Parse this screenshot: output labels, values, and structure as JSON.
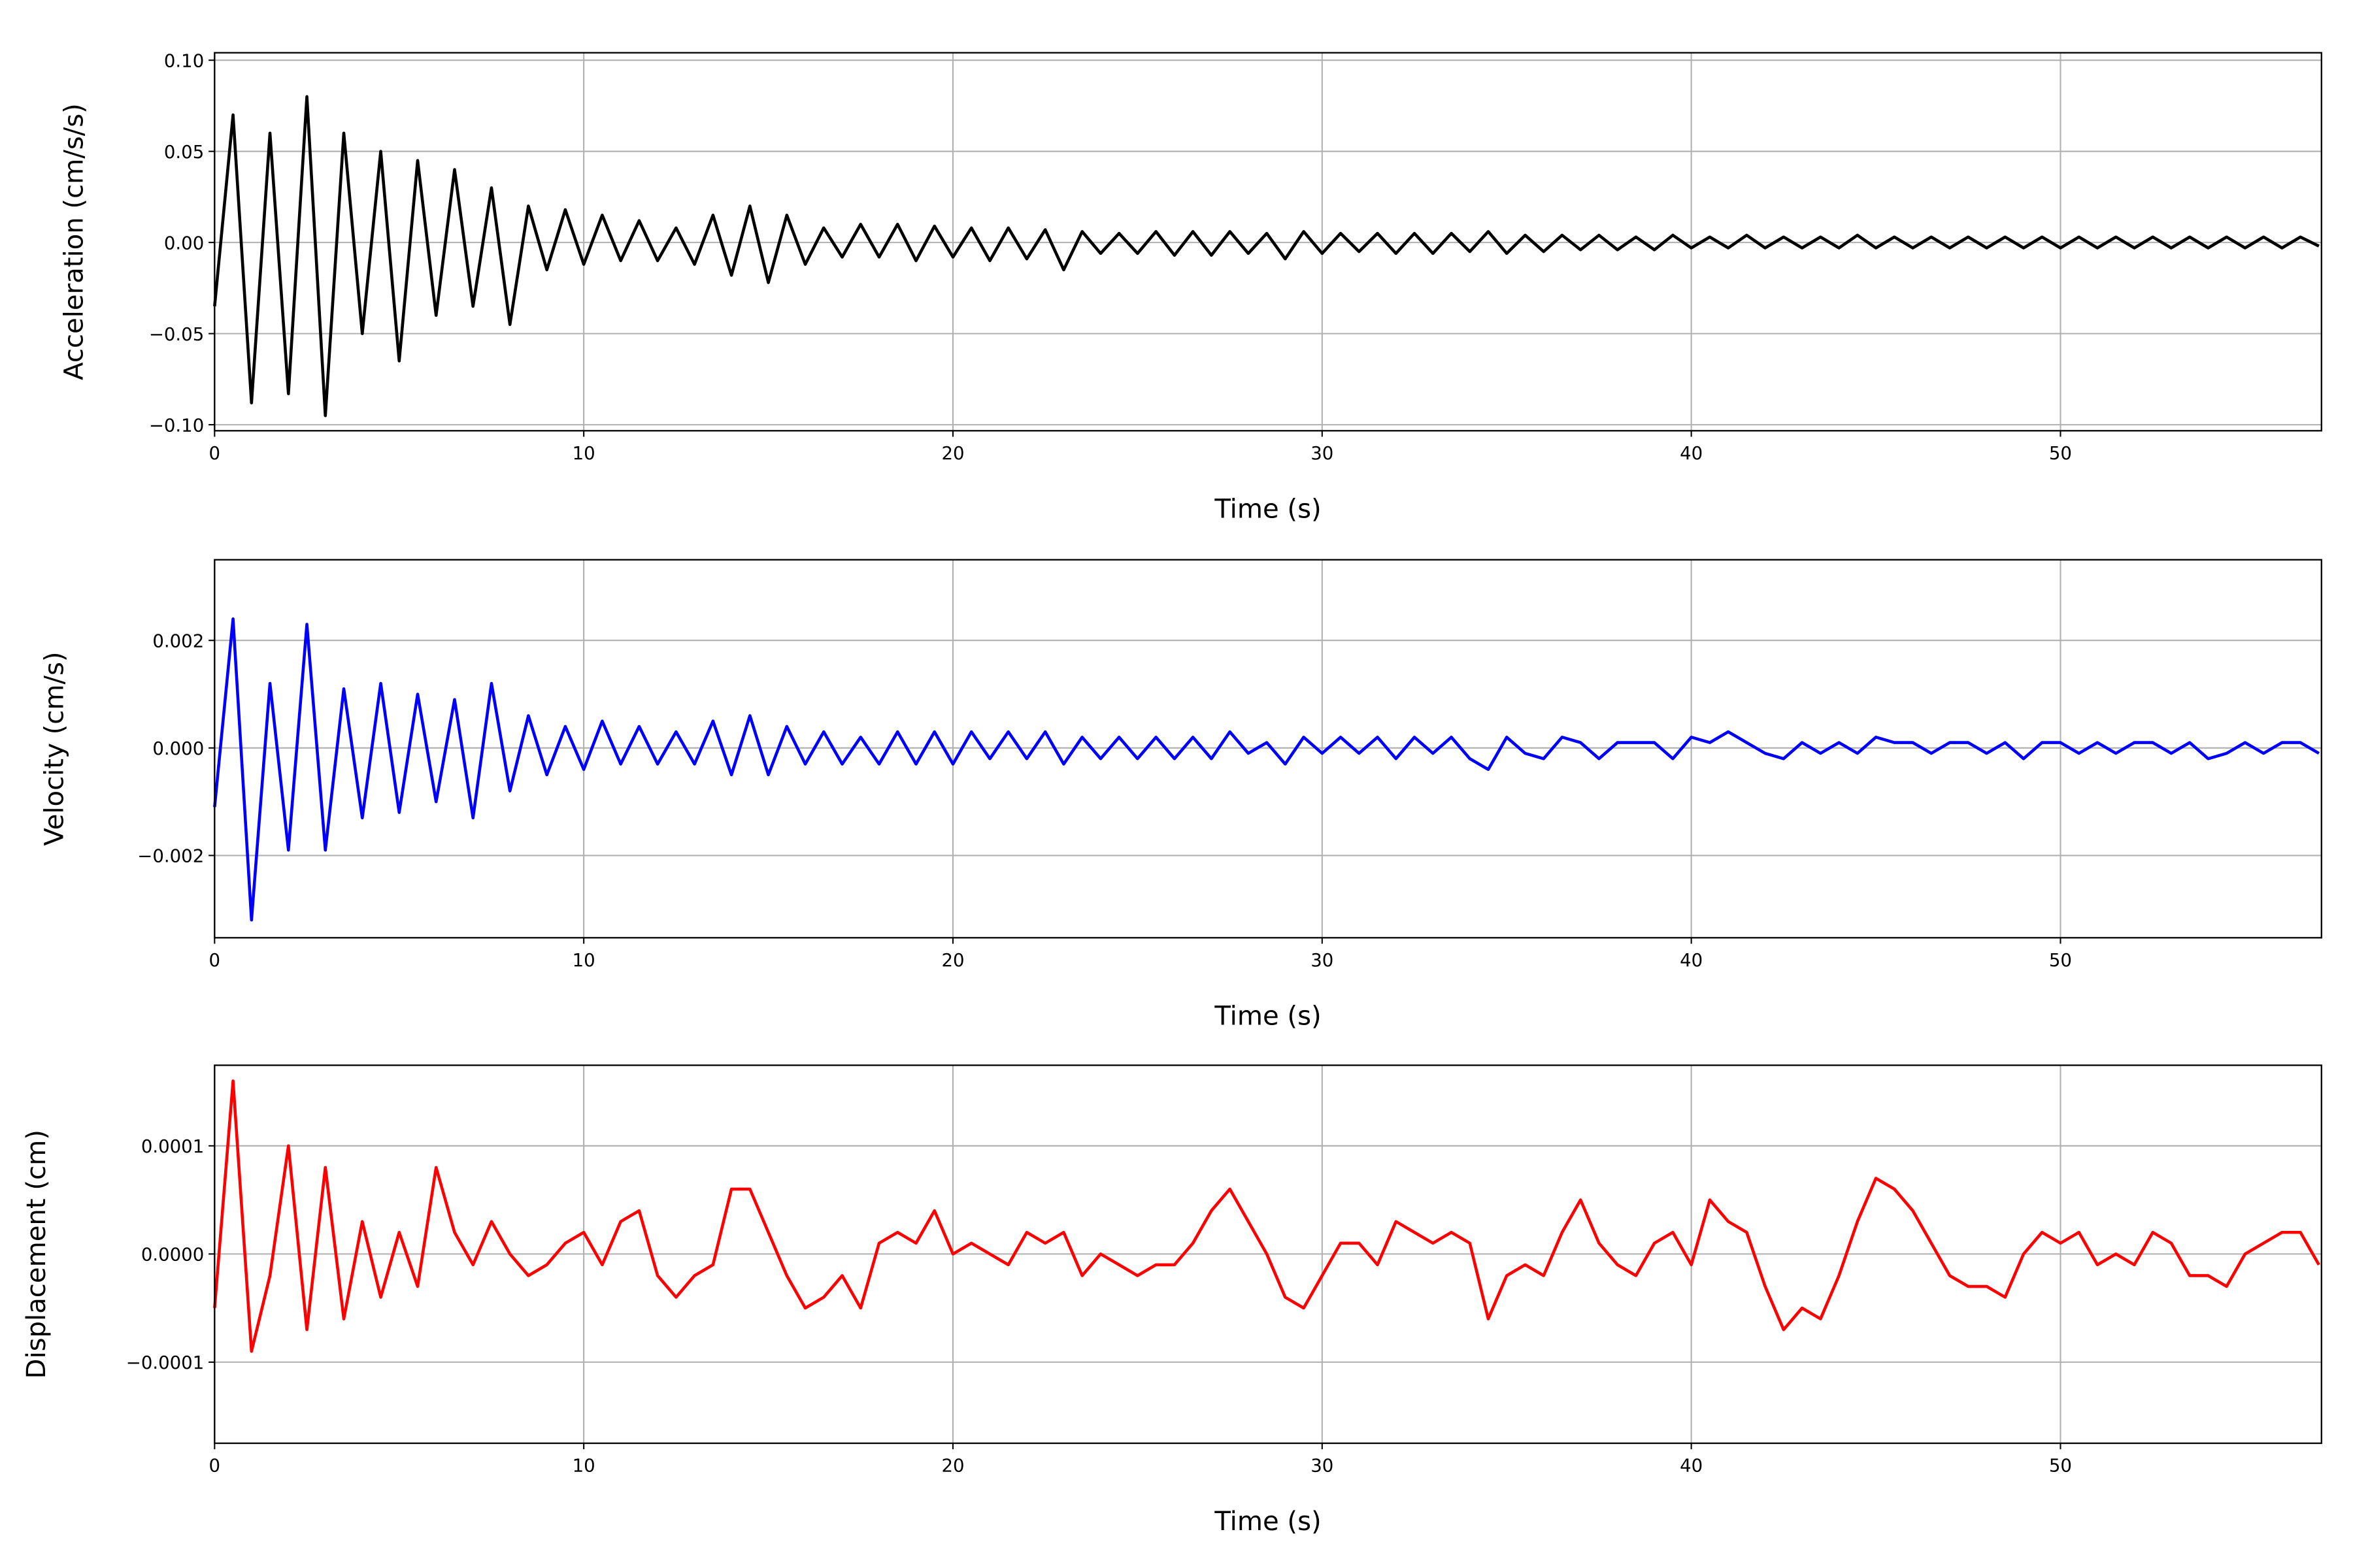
{
  "chart_data": [
    {
      "type": "line",
      "xlabel": "Time (s)",
      "ylabel": "Acceleration (cm/s/s)",
      "grid": true,
      "xlim": [
        0,
        57.07
      ],
      "xticks": [
        0,
        10,
        20,
        30,
        40,
        50
      ],
      "ylim": [
        -0.1033,
        0.1041
      ],
      "yticks": [
        {
          "value": -0.1,
          "label": "−0.10"
        },
        {
          "value": -0.05,
          "label": "−0.05"
        },
        {
          "value": 0,
          "label": "0.00"
        },
        0.05,
        {
          "value": 0.1,
          "label": "0.10"
        }
      ],
      "x": [
        0,
        0.5,
        1,
        1.5,
        2,
        2.5,
        3,
        3.5,
        4,
        4.5,
        5,
        5.5,
        6,
        6.5,
        7,
        7.5,
        8,
        8.5,
        9,
        9.5,
        10,
        10.5,
        11,
        11.5,
        12,
        12.5,
        13,
        13.5,
        14,
        14.5,
        15,
        15.5,
        16,
        16.5,
        17,
        17.5,
        18,
        18.5,
        19,
        19.5,
        20,
        20.5,
        21,
        21.5,
        22,
        22.5,
        23,
        23.5,
        24,
        24.5,
        25,
        25.5,
        26,
        26.5,
        27,
        27.5,
        28,
        28.5,
        29,
        29.5,
        30,
        30.5,
        31,
        31.5,
        32,
        32.5,
        33,
        33.5,
        34,
        34.5,
        35,
        35.5,
        36,
        36.5,
        37,
        37.5,
        38,
        38.5,
        39,
        39.5,
        40,
        40.5,
        41,
        41.5,
        42,
        42.5,
        43,
        43.5,
        44,
        44.5,
        45,
        45.5,
        46,
        46.5,
        47,
        47.5,
        48,
        48.5,
        49,
        49.5,
        50,
        50.5,
        51,
        51.5,
        52,
        52.5,
        53,
        53.5,
        54,
        54.5,
        55,
        55.5,
        56,
        56.5,
        57
      ],
      "series": [
        {
          "color": "#000000",
          "values": [
            -0.035,
            0.07,
            -0.088,
            0.06,
            -0.083,
            0.08,
            -0.095,
            0.06,
            -0.05,
            0.05,
            -0.065,
            0.045,
            -0.04,
            0.04,
            -0.035,
            0.03,
            -0.045,
            0.02,
            -0.015,
            0.018,
            -0.012,
            0.015,
            -0.01,
            0.012,
            -0.01,
            0.008,
            -0.012,
            0.015,
            -0.018,
            0.02,
            -0.022,
            0.015,
            -0.012,
            0.008,
            -0.008,
            0.01,
            -0.008,
            0.01,
            -0.01,
            0.009,
            -0.008,
            0.008,
            -0.01,
            0.008,
            -0.009,
            0.007,
            -0.015,
            0.006,
            -0.006,
            0.005,
            -0.006,
            0.006,
            -0.007,
            0.006,
            -0.007,
            0.006,
            -0.006,
            0.005,
            -0.009,
            0.006,
            -0.006,
            0.005,
            -0.005,
            0.005,
            -0.006,
            0.005,
            -0.006,
            0.005,
            -0.005,
            0.006,
            -0.006,
            0.004,
            -0.005,
            0.004,
            -0.004,
            0.004,
            -0.004,
            0.003,
            -0.004,
            0.004,
            -0.003,
            0.003,
            -0.003,
            0.004,
            -0.003,
            0.003,
            -0.003,
            0.003,
            -0.003,
            0.004,
            -0.003,
            0.003,
            -0.003,
            0.003,
            -0.003,
            0.003,
            -0.003,
            0.003,
            -0.003,
            0.003,
            -0.003,
            0.003,
            -0.003,
            0.003,
            -0.003,
            0.003,
            -0.003,
            0.003,
            -0.003,
            0.003,
            -0.003,
            0.003,
            -0.003,
            0.003,
            -0.002
          ]
        }
      ]
    },
    {
      "type": "line",
      "xlabel": "Time (s)",
      "ylabel": "Velocity (cm/s)",
      "grid": true,
      "xlim": [
        0,
        57.07
      ],
      "xticks": [
        0,
        10,
        20,
        30,
        40,
        50
      ],
      "ylim": [
        -0.00353,
        0.0035
      ],
      "yticks": [
        {
          "value": -0.002,
          "label": "−0.002"
        },
        {
          "value": 0,
          "label": "0.000"
        },
        0.002
      ],
      "x": [
        0,
        0.5,
        1,
        1.5,
        2,
        2.5,
        3,
        3.5,
        4,
        4.5,
        5,
        5.5,
        6,
        6.5,
        7,
        7.5,
        8,
        8.5,
        9,
        9.5,
        10,
        10.5,
        11,
        11.5,
        12,
        12.5,
        13,
        13.5,
        14,
        14.5,
        15,
        15.5,
        16,
        16.5,
        17,
        17.5,
        18,
        18.5,
        19,
        19.5,
        20,
        20.5,
        21,
        21.5,
        22,
        22.5,
        23,
        23.5,
        24,
        24.5,
        25,
        25.5,
        26,
        26.5,
        27,
        27.5,
        28,
        28.5,
        29,
        29.5,
        30,
        30.5,
        31,
        31.5,
        32,
        32.5,
        33,
        33.5,
        34,
        34.5,
        35,
        35.5,
        36,
        36.5,
        37,
        37.5,
        38,
        38.5,
        39,
        39.5,
        40,
        40.5,
        41,
        41.5,
        42,
        42.5,
        43,
        43.5,
        44,
        44.5,
        45,
        45.5,
        46,
        46.5,
        47,
        47.5,
        48,
        48.5,
        49,
        49.5,
        50,
        50.5,
        51,
        51.5,
        52,
        52.5,
        53,
        53.5,
        54,
        54.5,
        55,
        55.5,
        56,
        56.5,
        57
      ],
      "series": [
        {
          "color": "#0000ff",
          "values": [
            -0.0011,
            0.0024,
            -0.0032,
            0.0012,
            -0.0019,
            0.0023,
            -0.0019,
            0.0011,
            -0.0013,
            0.0012,
            -0.0012,
            0.001,
            -0.001,
            0.0009,
            -0.0013,
            0.0012,
            -0.0008,
            0.0006,
            -0.0005,
            0.0004,
            -0.0004,
            0.0005,
            -0.0003,
            0.0004,
            -0.0003,
            0.0003,
            -0.0003,
            0.0005,
            -0.0005,
            0.0006,
            -0.0005,
            0.0004,
            -0.0003,
            0.0003,
            -0.0003,
            0.0002,
            -0.0003,
            0.0003,
            -0.0003,
            0.0003,
            -0.0003,
            0.0003,
            -0.0002,
            0.0003,
            -0.0002,
            0.0003,
            -0.0003,
            0.0002,
            -0.0002,
            0.0002,
            -0.0002,
            0.0002,
            -0.0002,
            0.0002,
            -0.0002,
            0.0003,
            -0.0001,
            0.0001,
            -0.0003,
            0.0002,
            -0.0001,
            0.0002,
            -0.0001,
            0.0002,
            -0.0002,
            0.0002,
            -0.0001,
            0.0002,
            -0.0002,
            -0.0004,
            0.0002,
            -0.0001,
            -0.0002,
            0.0002,
            0.0001,
            -0.0002,
            0.0001,
            0.0001,
            0.0001,
            -0.0002,
            0.0002,
            0.0001,
            0.0003,
            0.0001,
            -0.0001,
            -0.0002,
            0.0001,
            -0.0001,
            0.0001,
            -0.0001,
            0.0002,
            0.0001,
            0.0001,
            -0.0001,
            0.0001,
            0.0001,
            -0.0001,
            0.0001,
            -0.0002,
            0.0001,
            0.0001,
            -0.0001,
            0.0001,
            -0.0001,
            0.0001,
            0.0001,
            -0.0001,
            0.0001,
            -0.0002,
            -0.0001,
            0.0001,
            -0.0001,
            0.0001,
            0.0001,
            -0.0001
          ]
        }
      ]
    },
    {
      "type": "line",
      "xlabel": "Time (s)",
      "ylabel": "Displacement (cm)",
      "grid": true,
      "xlim": [
        0,
        57.07
      ],
      "xticks": [
        0,
        10,
        20,
        30,
        40,
        50
      ],
      "ylim": [
        -0.000175,
        0.0001745
      ],
      "yticks": [
        {
          "value": -0.0001,
          "label": "−0.0001"
        },
        {
          "value": 0,
          "label": "0.0000"
        },
        0.0001
      ],
      "x": [
        0,
        0.5,
        1,
        1.5,
        2,
        2.5,
        3,
        3.5,
        4,
        4.5,
        5,
        5.5,
        6,
        6.5,
        7,
        7.5,
        8,
        8.5,
        9,
        9.5,
        10,
        10.5,
        11,
        11.5,
        12,
        12.5,
        13,
        13.5,
        14,
        14.5,
        15,
        15.5,
        16,
        16.5,
        17,
        17.5,
        18,
        18.5,
        19,
        19.5,
        20,
        20.5,
        21,
        21.5,
        22,
        22.5,
        23,
        23.5,
        24,
        24.5,
        25,
        25.5,
        26,
        26.5,
        27,
        27.5,
        28,
        28.5,
        29,
        29.5,
        30,
        30.5,
        31,
        31.5,
        32,
        32.5,
        33,
        33.5,
        34,
        34.5,
        35,
        35.5,
        36,
        36.5,
        37,
        37.5,
        38,
        38.5,
        39,
        39.5,
        40,
        40.5,
        41,
        41.5,
        42,
        42.5,
        43,
        43.5,
        44,
        44.5,
        45,
        45.5,
        46,
        46.5,
        47,
        47.5,
        48,
        48.5,
        49,
        49.5,
        50,
        50.5,
        51,
        51.5,
        52,
        52.5,
        53,
        53.5,
        54,
        54.5,
        55,
        55.5,
        56,
        56.5,
        57
      ],
      "series": [
        {
          "color": "#ff0000",
          "values": [
            -5e-05,
            0.00016,
            -9e-05,
            -2e-05,
            0.0001,
            -7e-05,
            8e-05,
            -6e-05,
            3e-05,
            -4e-05,
            2e-05,
            -3e-05,
            8e-05,
            2e-05,
            -1e-05,
            3e-05,
            0,
            -2e-05,
            -1e-05,
            1e-05,
            2e-05,
            -1e-05,
            3e-05,
            4e-05,
            -2e-05,
            -4e-05,
            -2e-05,
            -1e-05,
            6e-05,
            6e-05,
            2e-05,
            -2e-05,
            -5e-05,
            -4e-05,
            -2e-05,
            -5e-05,
            1e-05,
            2e-05,
            1e-05,
            4e-05,
            0,
            1e-05,
            0,
            -1e-05,
            2e-05,
            1e-05,
            2e-05,
            -2e-05,
            0,
            -1e-05,
            -2e-05,
            -1e-05,
            -1e-05,
            1e-05,
            4e-05,
            6e-05,
            3e-05,
            0,
            -4e-05,
            -5e-05,
            -2e-05,
            1e-05,
            1e-05,
            -1e-05,
            3e-05,
            2e-05,
            1e-05,
            2e-05,
            1e-05,
            -6e-05,
            -2e-05,
            -1e-05,
            -2e-05,
            2e-05,
            5e-05,
            1e-05,
            -1e-05,
            -2e-05,
            1e-05,
            2e-05,
            -1e-05,
            5e-05,
            3e-05,
            2e-05,
            -3e-05,
            -7e-05,
            -5e-05,
            -6e-05,
            -2e-05,
            3e-05,
            7e-05,
            6e-05,
            4e-05,
            1e-05,
            -2e-05,
            -3e-05,
            -3e-05,
            -4e-05,
            0,
            2e-05,
            1e-05,
            2e-05,
            -1e-05,
            0,
            -1e-05,
            2e-05,
            1e-05,
            -2e-05,
            -2e-05,
            -3e-05,
            0,
            1e-05,
            2e-05,
            2e-05,
            -1e-05
          ]
        }
      ]
    }
  ]
}
